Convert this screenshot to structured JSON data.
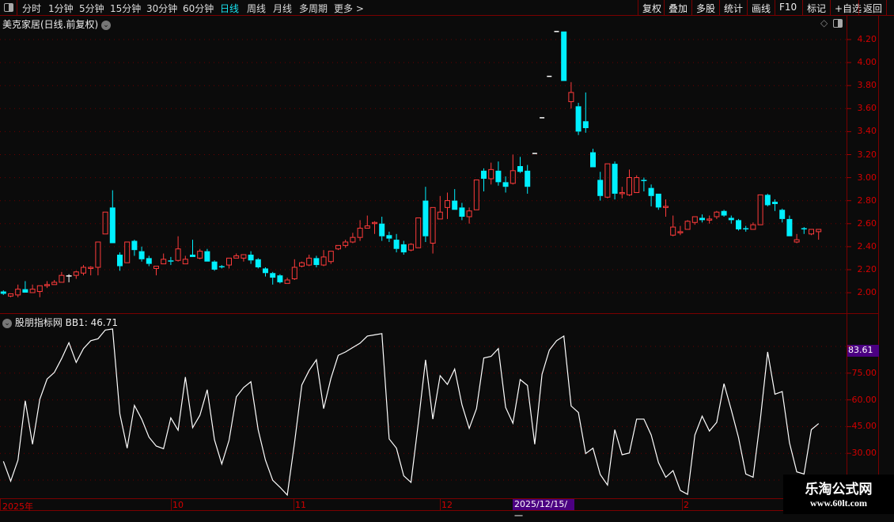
{
  "toolbar": {
    "periods": [
      "分时",
      "1分钟",
      "5分钟",
      "15分钟",
      "30分钟",
      "60分钟",
      "日线",
      "周线",
      "月线",
      "多周期",
      "更多 >"
    ],
    "active_period": "日线",
    "buttons": [
      "复权",
      "叠加",
      "多股",
      "统计",
      "画线",
      "F10",
      "标记",
      "+自选",
      "返回"
    ]
  },
  "chart": {
    "title": "美克家居(日线.前复权)",
    "up_color": "#ff3b3b",
    "down_color": "#00f0ff",
    "price_ticks": [
      "4.20",
      "4.00",
      "3.80",
      "3.60",
      "3.40",
      "3.20",
      "3.00",
      "2.80",
      "2.60",
      "2.40",
      "2.20",
      "2.00"
    ],
    "candles": [
      [
        2.01,
        2.02,
        1.98,
        1.99
      ],
      [
        1.97,
        1.99,
        1.96,
        1.99
      ],
      [
        1.98,
        2.07,
        1.96,
        2.03
      ],
      [
        2.03,
        2.1,
        2.0,
        2.0
      ],
      [
        2.0,
        2.07,
        2.0,
        2.03
      ],
      [
        2.01,
        2.06,
        1.96,
        2.06
      ],
      [
        2.06,
        2.1,
        2.04,
        2.07
      ],
      [
        2.07,
        2.11,
        2.07,
        2.09
      ],
      [
        2.09,
        2.18,
        2.09,
        2.15
      ],
      [
        2.15,
        2.16,
        2.09,
        2.15
      ],
      [
        2.15,
        2.19,
        2.12,
        2.18
      ],
      [
        2.17,
        2.24,
        2.15,
        2.22
      ],
      [
        2.21,
        2.23,
        2.15,
        2.22
      ],
      [
        2.22,
        2.44,
        2.15,
        2.44
      ],
      [
        2.51,
        2.7,
        2.51,
        2.7
      ],
      [
        2.74,
        2.89,
        2.43,
        2.43
      ],
      [
        2.33,
        2.35,
        2.19,
        2.23
      ],
      [
        2.26,
        2.44,
        2.26,
        2.44
      ],
      [
        2.45,
        2.46,
        2.32,
        2.37
      ],
      [
        2.36,
        2.4,
        2.27,
        2.29
      ],
      [
        2.3,
        2.32,
        2.23,
        2.25
      ],
      [
        2.21,
        2.23,
        2.15,
        2.23
      ],
      [
        2.25,
        2.34,
        2.25,
        2.29
      ],
      [
        2.28,
        2.31,
        2.24,
        2.27
      ],
      [
        2.28,
        2.49,
        2.27,
        2.38
      ],
      [
        2.25,
        2.32,
        2.25,
        2.29
      ],
      [
        2.33,
        2.46,
        2.31,
        2.31
      ],
      [
        2.3,
        2.38,
        2.29,
        2.36
      ],
      [
        2.36,
        2.38,
        2.27,
        2.27
      ],
      [
        2.27,
        2.28,
        2.19,
        2.2
      ],
      [
        2.23,
        2.24,
        2.21,
        2.22
      ],
      [
        2.24,
        2.3,
        2.21,
        2.3
      ],
      [
        2.3,
        2.34,
        2.3,
        2.32
      ],
      [
        2.3,
        2.33,
        2.27,
        2.33
      ],
      [
        2.33,
        2.36,
        2.25,
        2.28
      ],
      [
        2.29,
        2.3,
        2.21,
        2.22
      ],
      [
        2.21,
        2.22,
        2.14,
        2.17
      ],
      [
        2.17,
        2.18,
        2.07,
        2.13
      ],
      [
        2.15,
        2.16,
        2.08,
        2.09
      ],
      [
        2.08,
        2.13,
        2.08,
        2.11
      ],
      [
        2.12,
        2.29,
        2.11,
        2.22
      ],
      [
        2.23,
        2.27,
        2.22,
        2.26
      ],
      [
        2.24,
        2.33,
        2.23,
        2.3
      ],
      [
        2.3,
        2.32,
        2.22,
        2.24
      ],
      [
        2.24,
        2.37,
        2.23,
        2.31
      ],
      [
        2.27,
        2.36,
        2.25,
        2.36
      ],
      [
        2.38,
        2.41,
        2.37,
        2.41
      ],
      [
        2.41,
        2.46,
        2.39,
        2.44
      ],
      [
        2.44,
        2.52,
        2.43,
        2.48
      ],
      [
        2.48,
        2.63,
        2.45,
        2.56
      ],
      [
        2.56,
        2.67,
        2.56,
        2.58
      ],
      [
        2.6,
        2.62,
        2.51,
        2.61
      ],
      [
        2.6,
        2.66,
        2.45,
        2.49
      ],
      [
        2.5,
        2.53,
        2.44,
        2.47
      ],
      [
        2.46,
        2.51,
        2.35,
        2.38
      ],
      [
        2.42,
        2.45,
        2.33,
        2.35
      ],
      [
        2.37,
        2.43,
        2.36,
        2.42
      ],
      [
        2.39,
        2.65,
        2.39,
        2.65
      ],
      [
        2.8,
        2.92,
        2.44,
        2.49
      ],
      [
        2.43,
        2.74,
        2.34,
        2.74
      ],
      [
        2.64,
        2.84,
        2.64,
        2.7
      ],
      [
        2.74,
        2.87,
        2.64,
        2.8
      ],
      [
        2.8,
        2.9,
        2.72,
        2.72
      ],
      [
        2.74,
        2.78,
        2.63,
        2.66
      ],
      [
        2.66,
        2.74,
        2.6,
        2.71
      ],
      [
        2.72,
        2.98,
        2.72,
        2.98
      ],
      [
        3.06,
        3.08,
        2.88,
        2.99
      ],
      [
        2.99,
        3.13,
        2.94,
        3.07
      ],
      [
        3.06,
        3.14,
        2.93,
        2.96
      ],
      [
        2.96,
        3.01,
        2.87,
        2.92
      ],
      [
        2.95,
        3.2,
        2.94,
        3.06
      ],
      [
        3.1,
        3.18,
        3.04,
        3.05
      ],
      [
        3.06,
        3.11,
        2.86,
        2.92
      ],
      [
        3.21,
        3.21,
        3.21,
        3.21
      ],
      [
        3.52,
        3.52,
        3.52,
        3.52
      ],
      [
        3.88,
        3.88,
        3.88,
        3.88
      ],
      [
        4.27,
        4.27,
        4.27,
        4.27
      ],
      [
        4.27,
        4.27,
        3.84,
        3.84
      ],
      [
        3.66,
        3.83,
        3.6,
        3.74
      ],
      [
        3.62,
        3.65,
        3.37,
        3.4
      ],
      [
        3.49,
        3.74,
        3.39,
        3.43
      ],
      [
        3.22,
        3.25,
        3.09,
        3.09
      ],
      [
        2.98,
        3.05,
        2.8,
        2.84
      ],
      [
        2.83,
        3.12,
        2.82,
        3.12
      ],
      [
        3.12,
        3.14,
        2.81,
        2.86
      ],
      [
        2.86,
        2.92,
        2.82,
        2.87
      ],
      [
        2.85,
        3.07,
        2.84,
        3.0
      ],
      [
        2.87,
        3.02,
        2.87,
        3.0
      ],
      [
        2.98,
        3.0,
        2.88,
        2.97
      ],
      [
        2.91,
        2.94,
        2.75,
        2.84
      ],
      [
        2.86,
        2.86,
        2.72,
        2.74
      ],
      [
        2.74,
        2.81,
        2.66,
        2.75
      ],
      [
        2.5,
        2.67,
        2.49,
        2.57
      ],
      [
        2.52,
        2.58,
        2.5,
        2.53
      ],
      [
        2.55,
        2.63,
        2.55,
        2.62
      ],
      [
        2.61,
        2.66,
        2.59,
        2.66
      ],
      [
        2.65,
        2.68,
        2.61,
        2.63
      ],
      [
        2.63,
        2.67,
        2.6,
        2.64
      ],
      [
        2.66,
        2.71,
        2.64,
        2.7
      ],
      [
        2.71,
        2.72,
        2.66,
        2.67
      ],
      [
        2.65,
        2.67,
        2.6,
        2.63
      ],
      [
        2.63,
        2.64,
        2.54,
        2.55
      ],
      [
        2.56,
        2.58,
        2.53,
        2.55
      ],
      [
        2.55,
        2.61,
        2.55,
        2.59
      ],
      [
        2.59,
        2.85,
        2.59,
        2.85
      ],
      [
        2.85,
        2.86,
        2.75,
        2.76
      ],
      [
        2.79,
        2.81,
        2.71,
        2.77
      ],
      [
        2.72,
        2.73,
        2.61,
        2.64
      ],
      [
        2.64,
        2.67,
        2.49,
        2.49
      ],
      [
        2.44,
        2.51,
        2.43,
        2.46
      ],
      [
        2.56,
        2.57,
        2.51,
        2.55
      ],
      [
        2.51,
        2.55,
        2.5,
        2.55
      ],
      [
        2.53,
        2.55,
        2.46,
        2.55
      ]
    ]
  },
  "indicator": {
    "name": "股朋指标网",
    "label": "BB1: 46.71",
    "line_color": "#ffffff",
    "ticks": [
      "75.00",
      "60.00",
      "45.00",
      "30.00"
    ],
    "cursor_value": "83.61",
    "values": [
      25.5,
      14.4,
      26.2,
      59.5,
      35.1,
      60.3,
      71.7,
      75.4,
      83.2,
      92.1,
      81.0,
      88.8,
      93.2,
      94.3,
      99.2,
      99.8,
      52.1,
      32.9,
      56.9,
      49.2,
      39.1,
      34.1,
      32.6,
      49.9,
      43.0,
      72.8,
      44.4,
      51.4,
      65.7,
      37.6,
      24.0,
      37.3,
      61.7,
      66.9,
      70.2,
      43.3,
      26.2,
      14.9,
      11.0,
      6.6,
      36.0,
      68.4,
      76.5,
      82.5,
      55.1,
      72.1,
      85.0,
      86.9,
      89.4,
      91.8,
      95.8,
      96.5,
      97.2,
      38.1,
      32.9,
      17.4,
      13.7,
      46.9,
      82.5,
      49.2,
      73.6,
      68.7,
      77.3,
      57.3,
      44.0,
      55.1,
      83.5,
      84.4,
      88.8,
      55.8,
      46.9,
      71.4,
      68.1,
      35.1,
      74.3,
      87.9,
      93.2,
      95.8,
      56.6,
      52.9,
      29.9,
      32.9,
      18.1,
      12.2,
      43.3,
      29.2,
      30.2,
      49.2,
      49.2,
      40.3,
      24.8,
      16.6,
      20.3,
      9.2,
      7.0,
      40.3,
      50.9,
      42.5,
      47.4,
      69.1,
      54.4,
      38.8,
      18.4,
      16.6,
      49.2,
      86.9,
      63.2,
      64.7,
      35.9,
      19.6,
      18.4,
      43.3,
      46.71
    ]
  },
  "time_axis": {
    "labels": [
      "2025年",
      "10",
      "11",
      "12",
      "2"
    ],
    "cursor_date": "2025/12/15/一"
  },
  "watermark": {
    "line1": "乐淘公式网",
    "line2": "www.60lt.com"
  }
}
